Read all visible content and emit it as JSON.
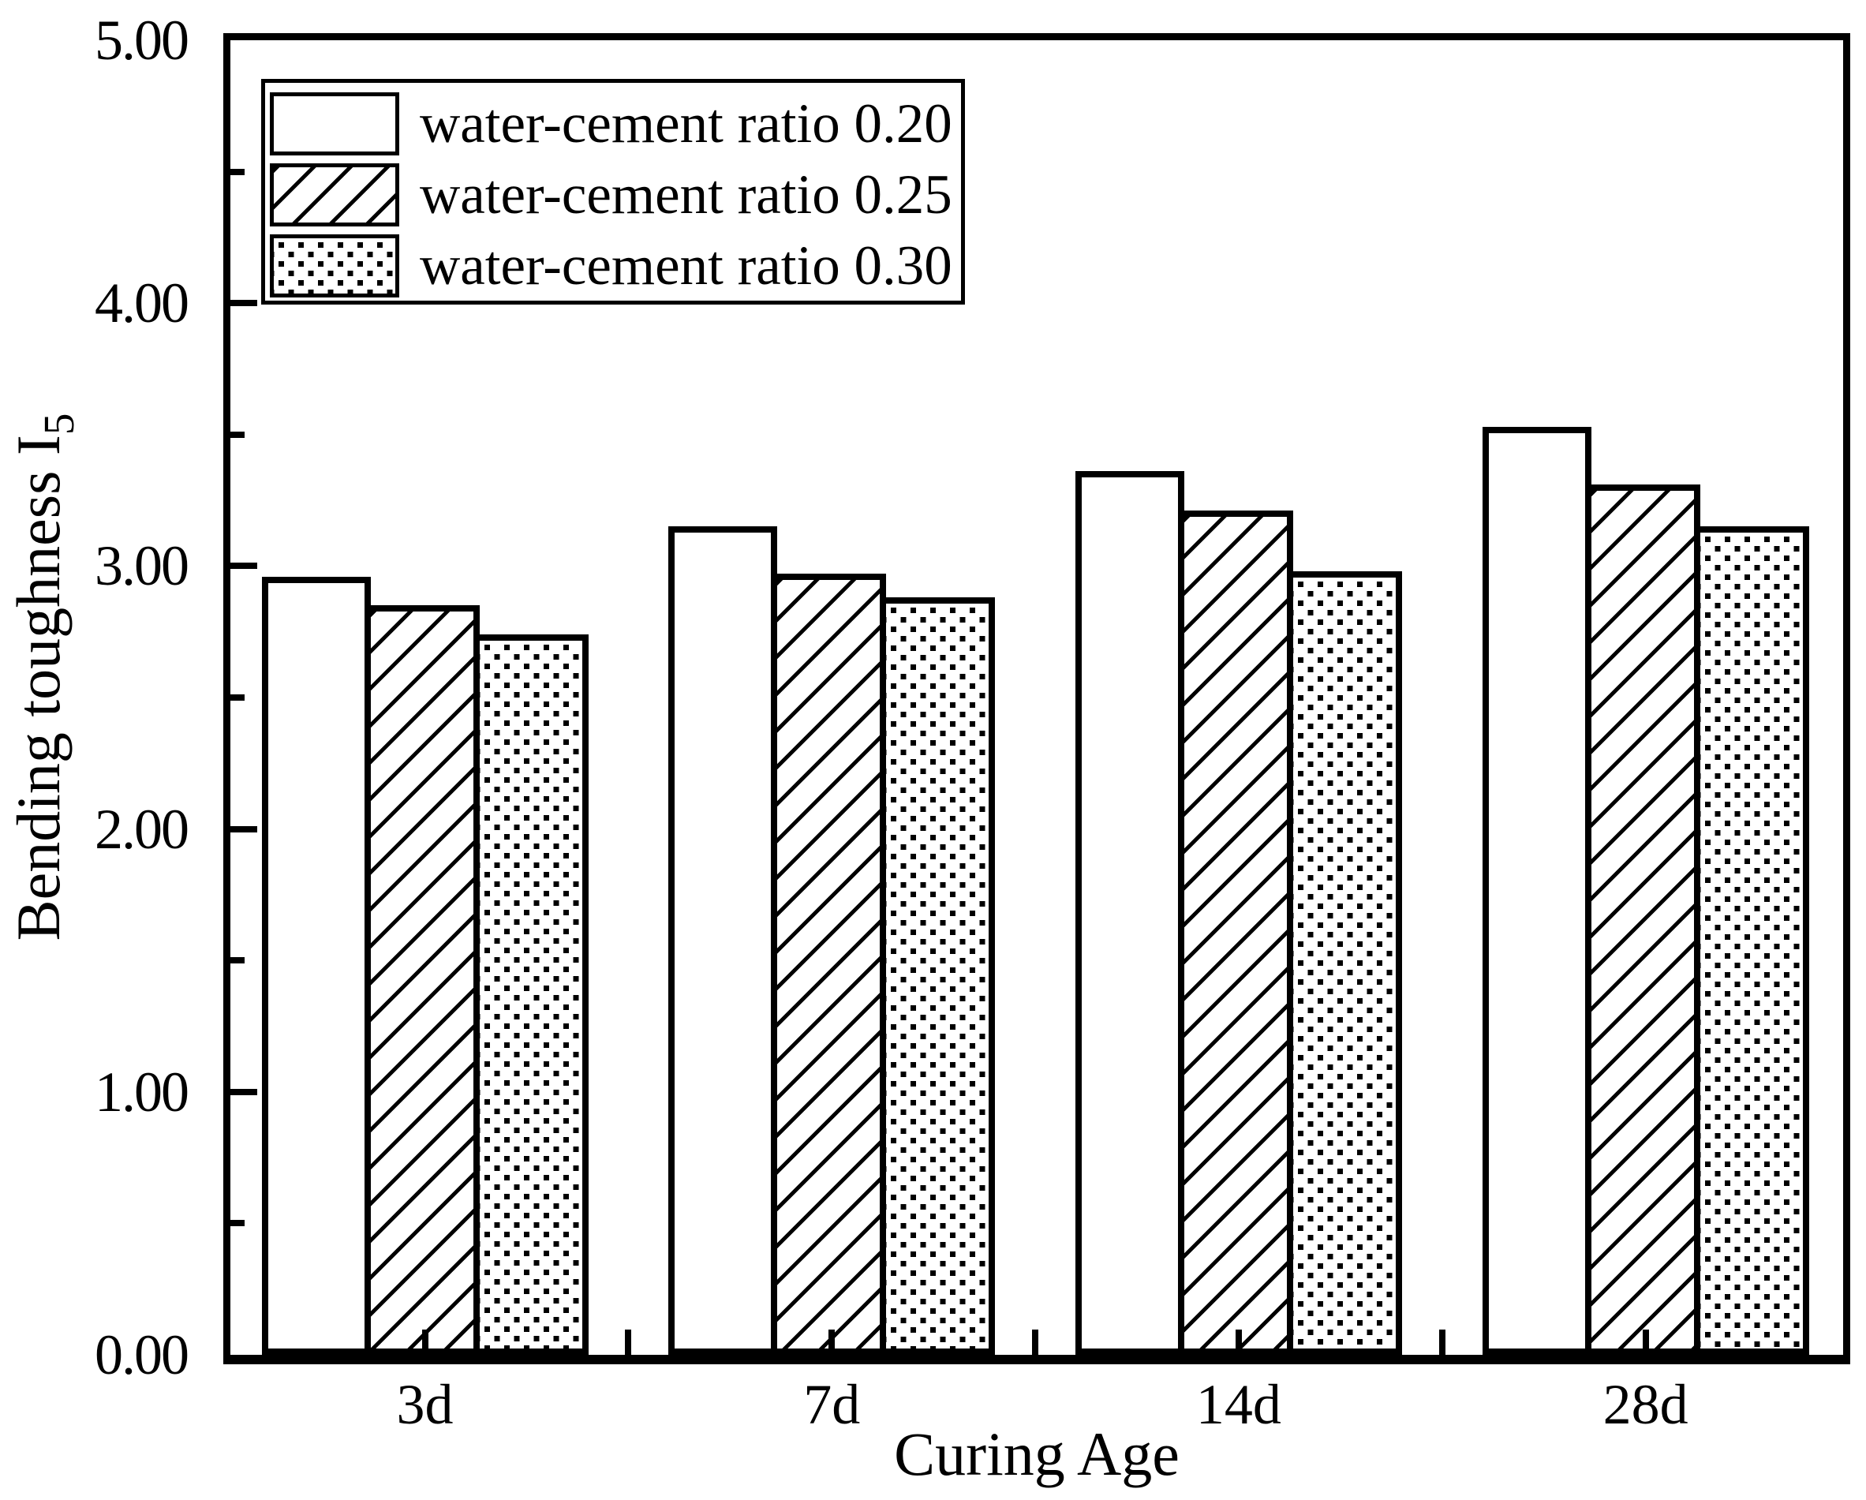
{
  "figure": {
    "background": "#ffffff",
    "ink": "#000000"
  },
  "chart_data": {
    "type": "bar",
    "title": "",
    "categories": [
      "3d",
      "7d",
      "14d",
      "28d"
    ],
    "series": [
      {
        "name": "water-cement ratio 0.20",
        "pattern": "solid-white",
        "values": [
          2.96,
          3.15,
          3.36,
          3.53
        ]
      },
      {
        "name": "water-cement ratio 0.25",
        "pattern": "diagonal-hatch",
        "values": [
          2.85,
          2.97,
          3.21,
          3.31
        ]
      },
      {
        "name": "water-cement ratio 0.30",
        "pattern": "square-dots",
        "values": [
          2.74,
          2.88,
          2.98,
          3.15
        ]
      }
    ],
    "xlabel": "Curing Age",
    "ylabel": "Bending toughness I5",
    "ylabel_base": "Bending toughness I",
    "ylabel_sub": "5",
    "ylim": [
      0,
      5
    ],
    "ytick_labels": [
      "0.00",
      "1.00",
      "2.00",
      "3.00",
      "4.00",
      "5.00"
    ],
    "ytick_major_step": 1.0,
    "ytick_minor_step": 0.5,
    "legend_position": "top-left",
    "grid": false
  }
}
